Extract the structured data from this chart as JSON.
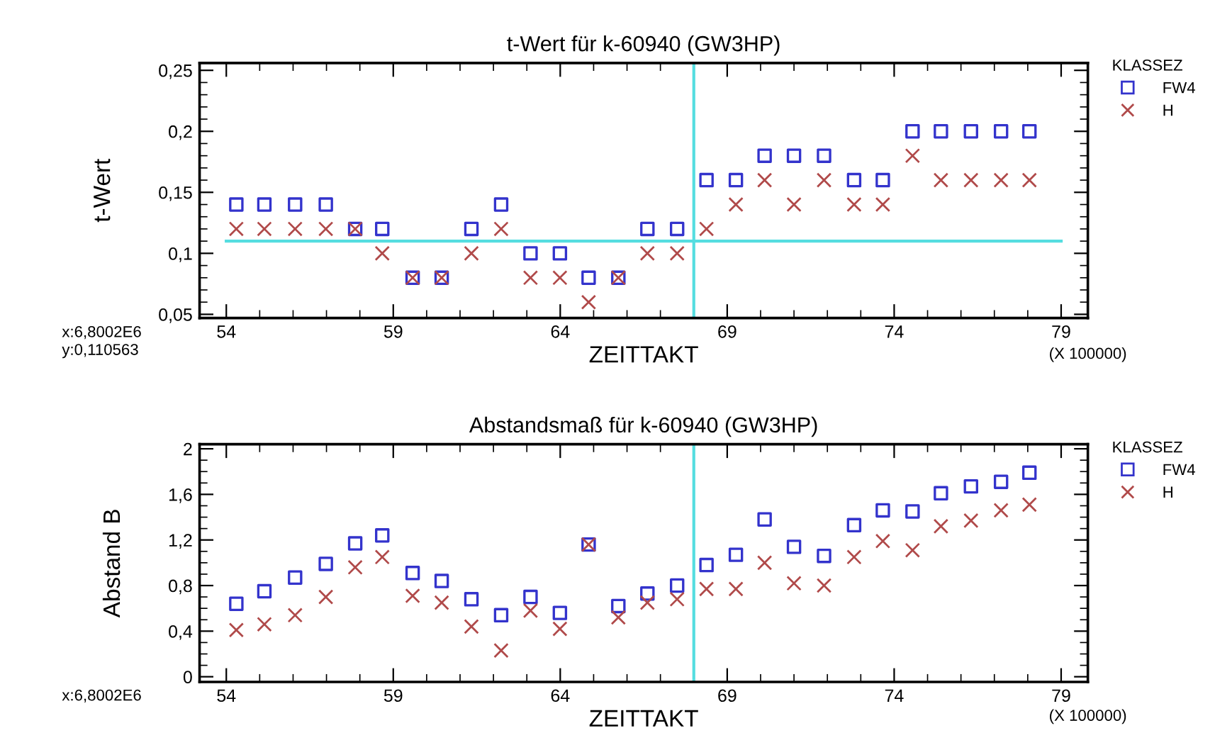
{
  "chart_data": [
    {
      "type": "scatter",
      "title": "t-Wert für k-60940 (GW3HP)",
      "xlabel": "ZEITTAKT",
      "ylabel": "t-Wert",
      "legend_title": "KLASSEZ",
      "annotations": [
        "(X 100000)",
        "x:6,8002E6",
        "y:0,110563"
      ],
      "x": [
        54.3,
        55.14,
        56.06,
        56.98,
        57.86,
        58.67,
        59.58,
        60.45,
        61.34,
        62.23,
        63.11,
        63.99,
        64.85,
        65.74,
        66.61,
        67.5,
        68.38,
        69.26,
        70.12,
        71.0,
        71.9,
        72.8,
        73.66,
        74.55,
        75.4,
        76.3,
        77.2,
        78.05
      ],
      "series": [
        {
          "name": "FW4",
          "color": "#3333cc",
          "marker": "square",
          "values": [
            0.14,
            0.14,
            0.14,
            0.14,
            0.12,
            0.12,
            0.08,
            0.08,
            0.12,
            0.14,
            0.1,
            0.1,
            0.08,
            0.08,
            0.12,
            0.12,
            0.16,
            0.16,
            0.18,
            0.18,
            0.18,
            0.16,
            0.16,
            0.2,
            0.2,
            0.2,
            0.2,
            0.2
          ]
        },
        {
          "name": "H",
          "color": "#b04a4a",
          "marker": "cross",
          "values": [
            0.12,
            0.12,
            0.12,
            0.12,
            0.12,
            0.1,
            0.08,
            0.08,
            0.1,
            0.12,
            0.08,
            0.08,
            0.06,
            0.08,
            0.1,
            0.1,
            0.12,
            0.14,
            0.16,
            0.14,
            0.16,
            0.14,
            0.14,
            0.18,
            0.16,
            0.16,
            0.16,
            0.16
          ]
        }
      ],
      "xlim": [
        53.2,
        79.8
      ],
      "xticks": [
        54,
        59,
        64,
        69,
        74,
        79
      ],
      "ylim": [
        0.047,
        0.256
      ],
      "yticks": [
        {
          "value": 0.05,
          "label": "0,05"
        },
        {
          "value": 0.1,
          "label": "0,1"
        },
        {
          "value": 0.15,
          "label": "0,15"
        },
        {
          "value": 0.2,
          "label": "0,2"
        },
        {
          "value": 0.25,
          "label": "0,25"
        }
      ],
      "ref_lines": [
        {
          "axis": "x",
          "value": 68.0,
          "color": "#55dde0"
        },
        {
          "axis": "y",
          "value": 0.11,
          "color": "#55dde0"
        }
      ],
      "grid": false,
      "legend": "top right"
    },
    {
      "type": "scatter",
      "title": "Abstandsmaß für k-60940 (GW3HP)",
      "xlabel": "ZEITTAKT",
      "ylabel": "Abstand B",
      "legend_title": "KLASSEZ",
      "annotations": [
        "(X 100000)",
        "x:6,8002E6"
      ],
      "x": [
        54.3,
        55.14,
        56.06,
        56.98,
        57.86,
        58.67,
        59.58,
        60.45,
        61.34,
        62.23,
        63.11,
        63.99,
        64.85,
        65.74,
        66.61,
        67.5,
        68.38,
        69.26,
        70.12,
        71.0,
        71.9,
        72.8,
        73.66,
        74.55,
        75.4,
        76.3,
        77.2,
        78.05
      ],
      "series": [
        {
          "name": "FW4",
          "color": "#3333cc",
          "marker": "square",
          "values": [
            0.64,
            0.75,
            0.87,
            0.99,
            1.17,
            1.24,
            0.91,
            0.84,
            0.68,
            0.54,
            0.7,
            0.56,
            1.16,
            0.62,
            0.73,
            0.8,
            0.98,
            1.07,
            1.38,
            1.14,
            1.06,
            1.33,
            1.46,
            1.45,
            1.61,
            1.67,
            1.71,
            1.79
          ]
        },
        {
          "name": "H",
          "color": "#b04a4a",
          "marker": "cross",
          "values": [
            0.41,
            0.46,
            0.54,
            0.7,
            0.96,
            1.05,
            0.71,
            0.65,
            0.44,
            0.23,
            0.58,
            0.42,
            1.16,
            0.52,
            0.65,
            0.68,
            0.77,
            0.77,
            1.0,
            0.82,
            0.8,
            1.05,
            1.19,
            1.11,
            1.32,
            1.37,
            1.46,
            1.51
          ]
        }
      ],
      "xlim": [
        53.2,
        79.8
      ],
      "xticks": [
        54,
        59,
        64,
        69,
        74,
        79
      ],
      "ylim": [
        -0.046,
        2.04
      ],
      "yticks": [
        0,
        {
          "value": 0.4,
          "label": "0,4"
        },
        {
          "value": 0.8,
          "label": "0,8"
        },
        {
          "value": 1.2,
          "label": "1,2"
        },
        {
          "value": 1.6,
          "label": "1,6"
        },
        2
      ],
      "ref_lines": [
        {
          "axis": "x",
          "value": 68.0,
          "color": "#55dde0"
        }
      ],
      "grid": false,
      "legend": "top right"
    }
  ]
}
